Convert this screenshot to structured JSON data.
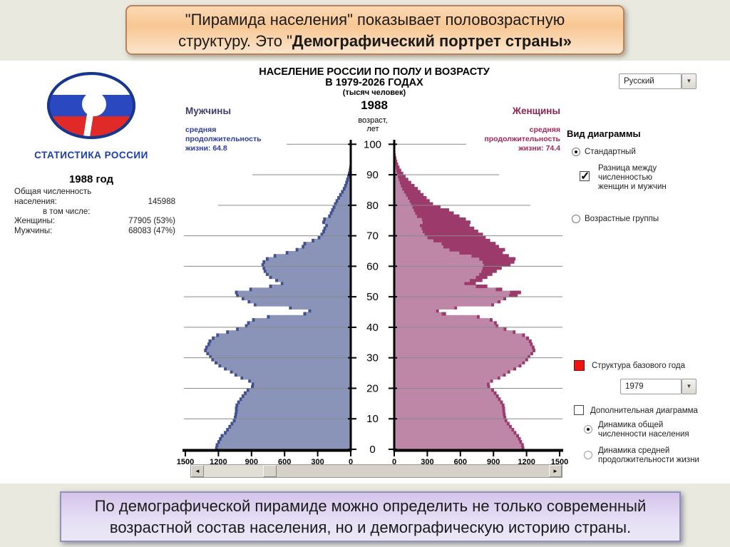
{
  "top_banner": {
    "line1": "\"Пирамида населения\" показывает половозрастную",
    "line2_normal": "структуру. Это \"",
    "line2_bold": "Демографический портрет страны»"
  },
  "logo": {
    "caption": "СТАТИСТИКА РОССИИ"
  },
  "stats": {
    "year_title": "1988 год",
    "lines": [
      {
        "label": "Общая численность",
        "value": ""
      },
      {
        "label": "населения:",
        "value": "145988"
      },
      {
        "label": "в том числе:",
        "value": ""
      },
      {
        "label": "Женщины:",
        "value": "77905 (53%)"
      },
      {
        "label": "Мужчины:",
        "value": "68083 (47%)"
      }
    ]
  },
  "language_select": {
    "value": "Русский"
  },
  "icons": {
    "dropdown_arrow": "▼",
    "scroll_left": "◄",
    "scroll_right": "►"
  },
  "controls": {
    "view_heading": "Вид диаграммы",
    "radio_standard": "Стандартный",
    "checkbox_diff": [
      "Разница между",
      "численностью",
      "женщин и мужчин"
    ],
    "radio_age_groups": "Возрастные группы",
    "legend_base_year": "Структура базового года",
    "base_year_select": "1979",
    "checkbox_additional": "Дополнительная диаграмма",
    "radio_dynamics_total": [
      "Динамика общей",
      "численности населения"
    ],
    "radio_dynamics_life": [
      "Динамика средней",
      "продолжительности жизни"
    ]
  },
  "colors": {
    "male_light": "#8A93B8",
    "male_dark": "#41508F",
    "female_light": "#BE87A8",
    "female_dark": "#9C3A6B",
    "legend_red": "#EE1212",
    "grid": "#8A8A8A",
    "axis": "#000000"
  },
  "chart_data": {
    "type": "bar",
    "subtype": "population_pyramid_horizontal",
    "title_line1": "НАСЕЛЕНИЕ РОССИИ ПО ПОЛУ И ВОЗРАСТУ",
    "title_line2": "В 1979-2026 ГОДАХ",
    "subtitle": "(тысяч человек)",
    "current_year": "1988",
    "age_axis_label_lines": [
      "возраст,",
      "лет"
    ],
    "value_axis_label": "тысяч человек",
    "age_ticks": [
      0,
      10,
      20,
      30,
      40,
      50,
      60,
      70,
      80,
      90,
      100
    ],
    "value_ticks": [
      0,
      300,
      600,
      900,
      1200,
      1500
    ],
    "value_max": 1500,
    "ages": "0-100 single-year cohorts",
    "series": [
      {
        "name": "Мужчины",
        "life_expectancy": 64.8,
        "life_lines": [
          "средняя",
          "продолжительность",
          "жизни: 64.8"
        ],
        "values": [
          1230,
          1225,
          1210,
          1195,
          1180,
          1150,
          1130,
          1110,
          1090,
          1070,
          1060,
          1055,
          1050,
          1050,
          1045,
          1030,
          1010,
          990,
          970,
          945,
          905,
          900,
          930,
          1000,
          1055,
          1095,
          1150,
          1200,
          1235,
          1265,
          1285,
          1310,
          1330,
          1320,
          1300,
          1290,
          1260,
          1220,
          1130,
          1040,
          960,
          940,
          895,
          760,
          430,
          385,
          560,
          880,
          935,
          990,
          1040,
          1050,
          920,
          740,
          635,
          685,
          740,
          770,
          790,
          800,
          810,
          800,
          770,
          700,
          590,
          500,
          445,
          430,
          355,
          300,
          275,
          258,
          248,
          232,
          258,
          250,
          205,
          190,
          178,
          165,
          152,
          138,
          122,
          105,
          88,
          72,
          60,
          50,
          42,
          33,
          26,
          19,
          14,
          10,
          8,
          6,
          4,
          3,
          2,
          2,
          3
        ]
      },
      {
        "name": "Женщины",
        "life_expectancy": 74.4,
        "life_lines": [
          "средняя",
          "продолжительность",
          "жизни: 74.4"
        ],
        "values": [
          1180,
          1175,
          1160,
          1148,
          1132,
          1108,
          1088,
          1066,
          1046,
          1026,
          1016,
          1010,
          1006,
          1005,
          1000,
          986,
          966,
          948,
          928,
          905,
          870,
          866,
          896,
          962,
          1012,
          1052,
          1106,
          1154,
          1186,
          1214,
          1234,
          1260,
          1280,
          1272,
          1256,
          1246,
          1222,
          1186,
          1100,
          1018,
          945,
          930,
          892,
          775,
          470,
          405,
          570,
          905,
          965,
          1015,
          1120,
          1150,
          980,
          845,
          740,
          800,
          845,
          890,
          930,
          975,
          1055,
          1090,
          1100,
          1040,
          985,
          1005,
          950,
          920,
          870,
          830,
          805,
          762,
          726,
          684,
          692,
          650,
          592,
          540,
          498,
          420,
          352,
          322,
          294,
          266,
          238,
          214,
          184,
          154,
          128,
          103,
          82,
          63,
          48,
          36,
          27,
          20,
          14,
          10,
          7,
          5,
          8
        ]
      }
    ],
    "diff_highlight": "Разница между численностью женщин и мужчин (тёмный сегмент на женской стороне)",
    "base_year_overlay": "1979"
  },
  "scrollbar": {
    "range": "1979–2026",
    "position_year": "1988"
  },
  "bottom_banner": {
    "line1": "По демографической пирамиде можно определить не только современный",
    "line2": "возрастной состав населения, но и демографическую историю страны."
  }
}
